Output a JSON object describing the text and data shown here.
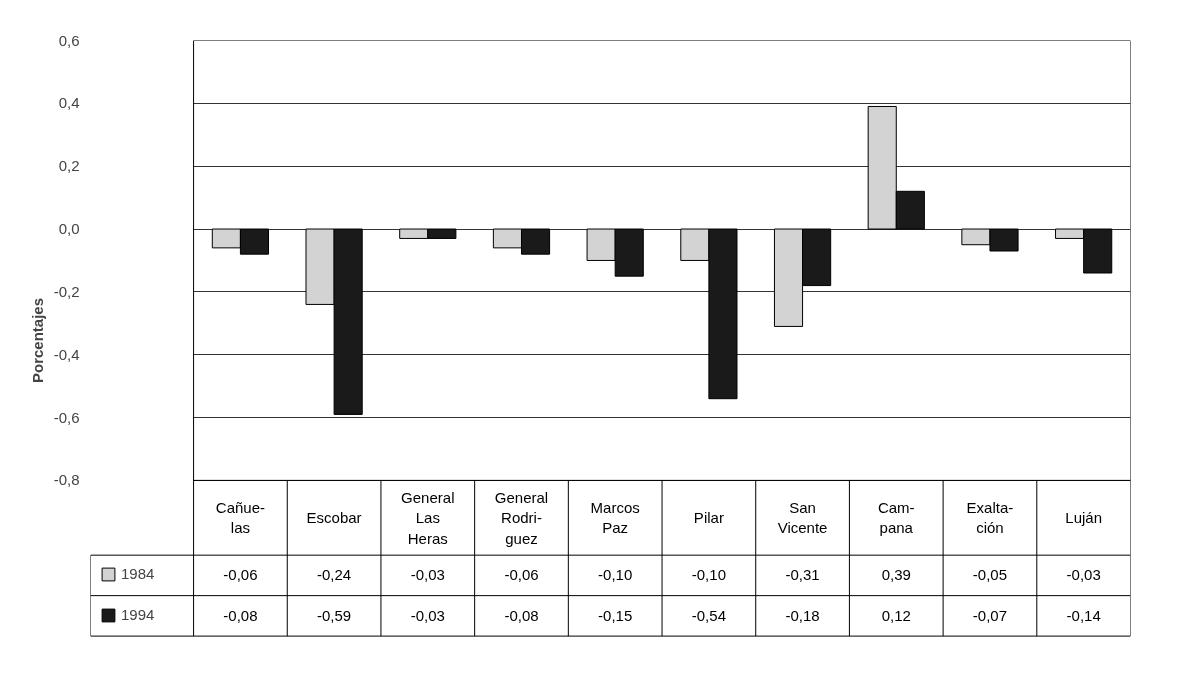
{
  "chart_data": {
    "type": "bar",
    "ylabel": "Porcentajes",
    "categories": [
      "Cañue-\nlas",
      "Escobar",
      "General\nLas\nHeras",
      "General\nRodri-\nguez",
      "Marcos\nPaz",
      "Pilar",
      "San\nVicente",
      "Cam-\npana",
      "Exalta-\nción",
      "Luján"
    ],
    "series": [
      {
        "name": "1984",
        "color": "#d3d3d3",
        "values": [
          -0.06,
          -0.24,
          -0.03,
          -0.06,
          -0.1,
          -0.1,
          -0.31,
          0.39,
          -0.05,
          -0.03
        ],
        "value_labels": [
          "-0,06",
          "-0,24",
          "-0,03",
          "-0,06",
          "-0,10",
          "-0,10",
          "-0,31",
          "0,39",
          "-0,05",
          "-0,03"
        ]
      },
      {
        "name": "1994",
        "color": "#1a1a1a",
        "values": [
          -0.08,
          -0.59,
          -0.03,
          -0.08,
          -0.15,
          -0.54,
          -0.18,
          0.12,
          -0.07,
          -0.14
        ],
        "value_labels": [
          "-0,08",
          "-0,59",
          "-0,03",
          "-0,08",
          "-0,15",
          "-0,54",
          "-0,18",
          "0,12",
          "-0,07",
          "-0,14"
        ]
      }
    ],
    "ylim": [
      -0.8,
      0.6
    ],
    "yticks": [
      {
        "value": -0.8,
        "label": "-0,8"
      },
      {
        "value": -0.6,
        "label": "-0,6"
      },
      {
        "value": -0.4,
        "label": "-0,4"
      },
      {
        "value": -0.2,
        "label": "-0,2"
      },
      {
        "value": 0,
        "label": "0,0"
      },
      {
        "value": 0.2,
        "label": "0,2"
      },
      {
        "value": 0.4,
        "label": "0,4"
      },
      {
        "value": 0.6,
        "label": "0,6"
      }
    ],
    "grid": "y",
    "legend": "bottom left"
  }
}
